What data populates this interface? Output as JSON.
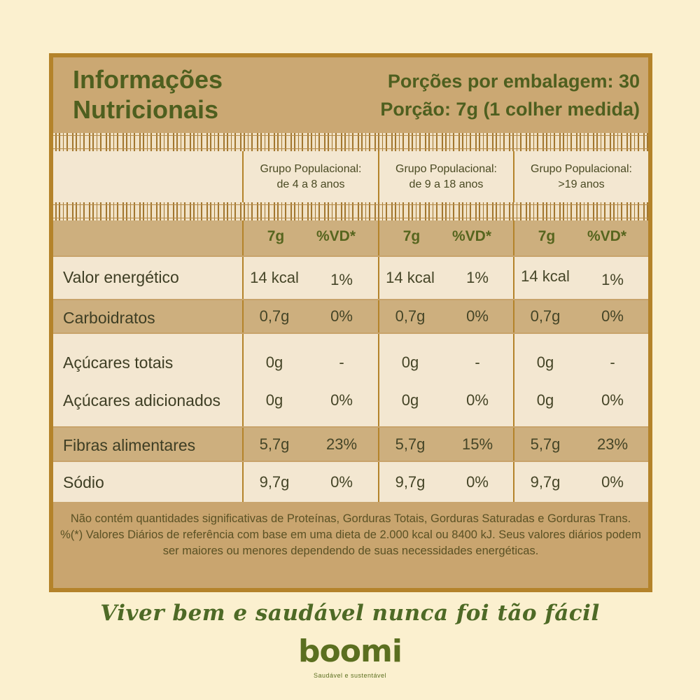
{
  "header": {
    "title_line1": "Informações",
    "title_line2": "Nutricionais",
    "servings_per_package": "Porções por embalagem: 30",
    "serving_size": "Porção: 7g (1 colher medida)"
  },
  "groups": [
    {
      "line1": "Grupo Populacional:",
      "line2": "de 4 a 8 anos"
    },
    {
      "line1": "Grupo Populacional:",
      "line2": "de 9 a 18 anos"
    },
    {
      "line1": "Grupo Populacional:",
      "line2": ">19 anos"
    }
  ],
  "columns": {
    "amount": "7g",
    "dv": "%VD*"
  },
  "rows": [
    {
      "name": "Valor energético",
      "values": [
        [
          "14 kcal",
          "1%"
        ],
        [
          "14 kcal",
          "1%"
        ],
        [
          "14 kcal",
          "1%"
        ]
      ]
    },
    {
      "name": "Carboidratos",
      "values": [
        [
          "0,7g",
          "0%"
        ],
        [
          "0,7g",
          "0%"
        ],
        [
          "0,7g",
          "0%"
        ]
      ]
    },
    {
      "name": "Açúcares totais",
      "values": [
        [
          "0g",
          "-"
        ],
        [
          "0g",
          "-"
        ],
        [
          "0g",
          "-"
        ]
      ]
    },
    {
      "name": "Açúcares adicionados",
      "values": [
        [
          "0g",
          "0%"
        ],
        [
          "0g",
          "0%"
        ],
        [
          "0g",
          "0%"
        ]
      ]
    },
    {
      "name": "Fibras alimentares",
      "values": [
        [
          "5,7g",
          "23%"
        ],
        [
          "5,7g",
          "15%"
        ],
        [
          "5,7g",
          "23%"
        ]
      ]
    },
    {
      "name": "Sódio",
      "values": [
        [
          "9,7g",
          "0%"
        ],
        [
          "9,7g",
          "0%"
        ],
        [
          "9,7g",
          "0%"
        ]
      ]
    }
  ],
  "footer": {
    "note1": "Não contém quantidades significativas de Proteínas, Gorduras Totais, Gorduras Saturadas e Gorduras Trans.",
    "note2": "%(*) Valores Diários de referência com base em uma dieta de 2.000 kcal ou 8400 kJ. Seus valores diários podem ser maiores ou menores dependendo de suas necessidades energéticas."
  },
  "tagline": "Viver bem e saudável nunca foi tão fácil",
  "brand": {
    "name": "boomi",
    "slogan": "Saudável e sustentável"
  },
  "colors": {
    "frame": "#b4832a",
    "title_green": "#4e5f1f",
    "background": "#fbf0cf"
  }
}
